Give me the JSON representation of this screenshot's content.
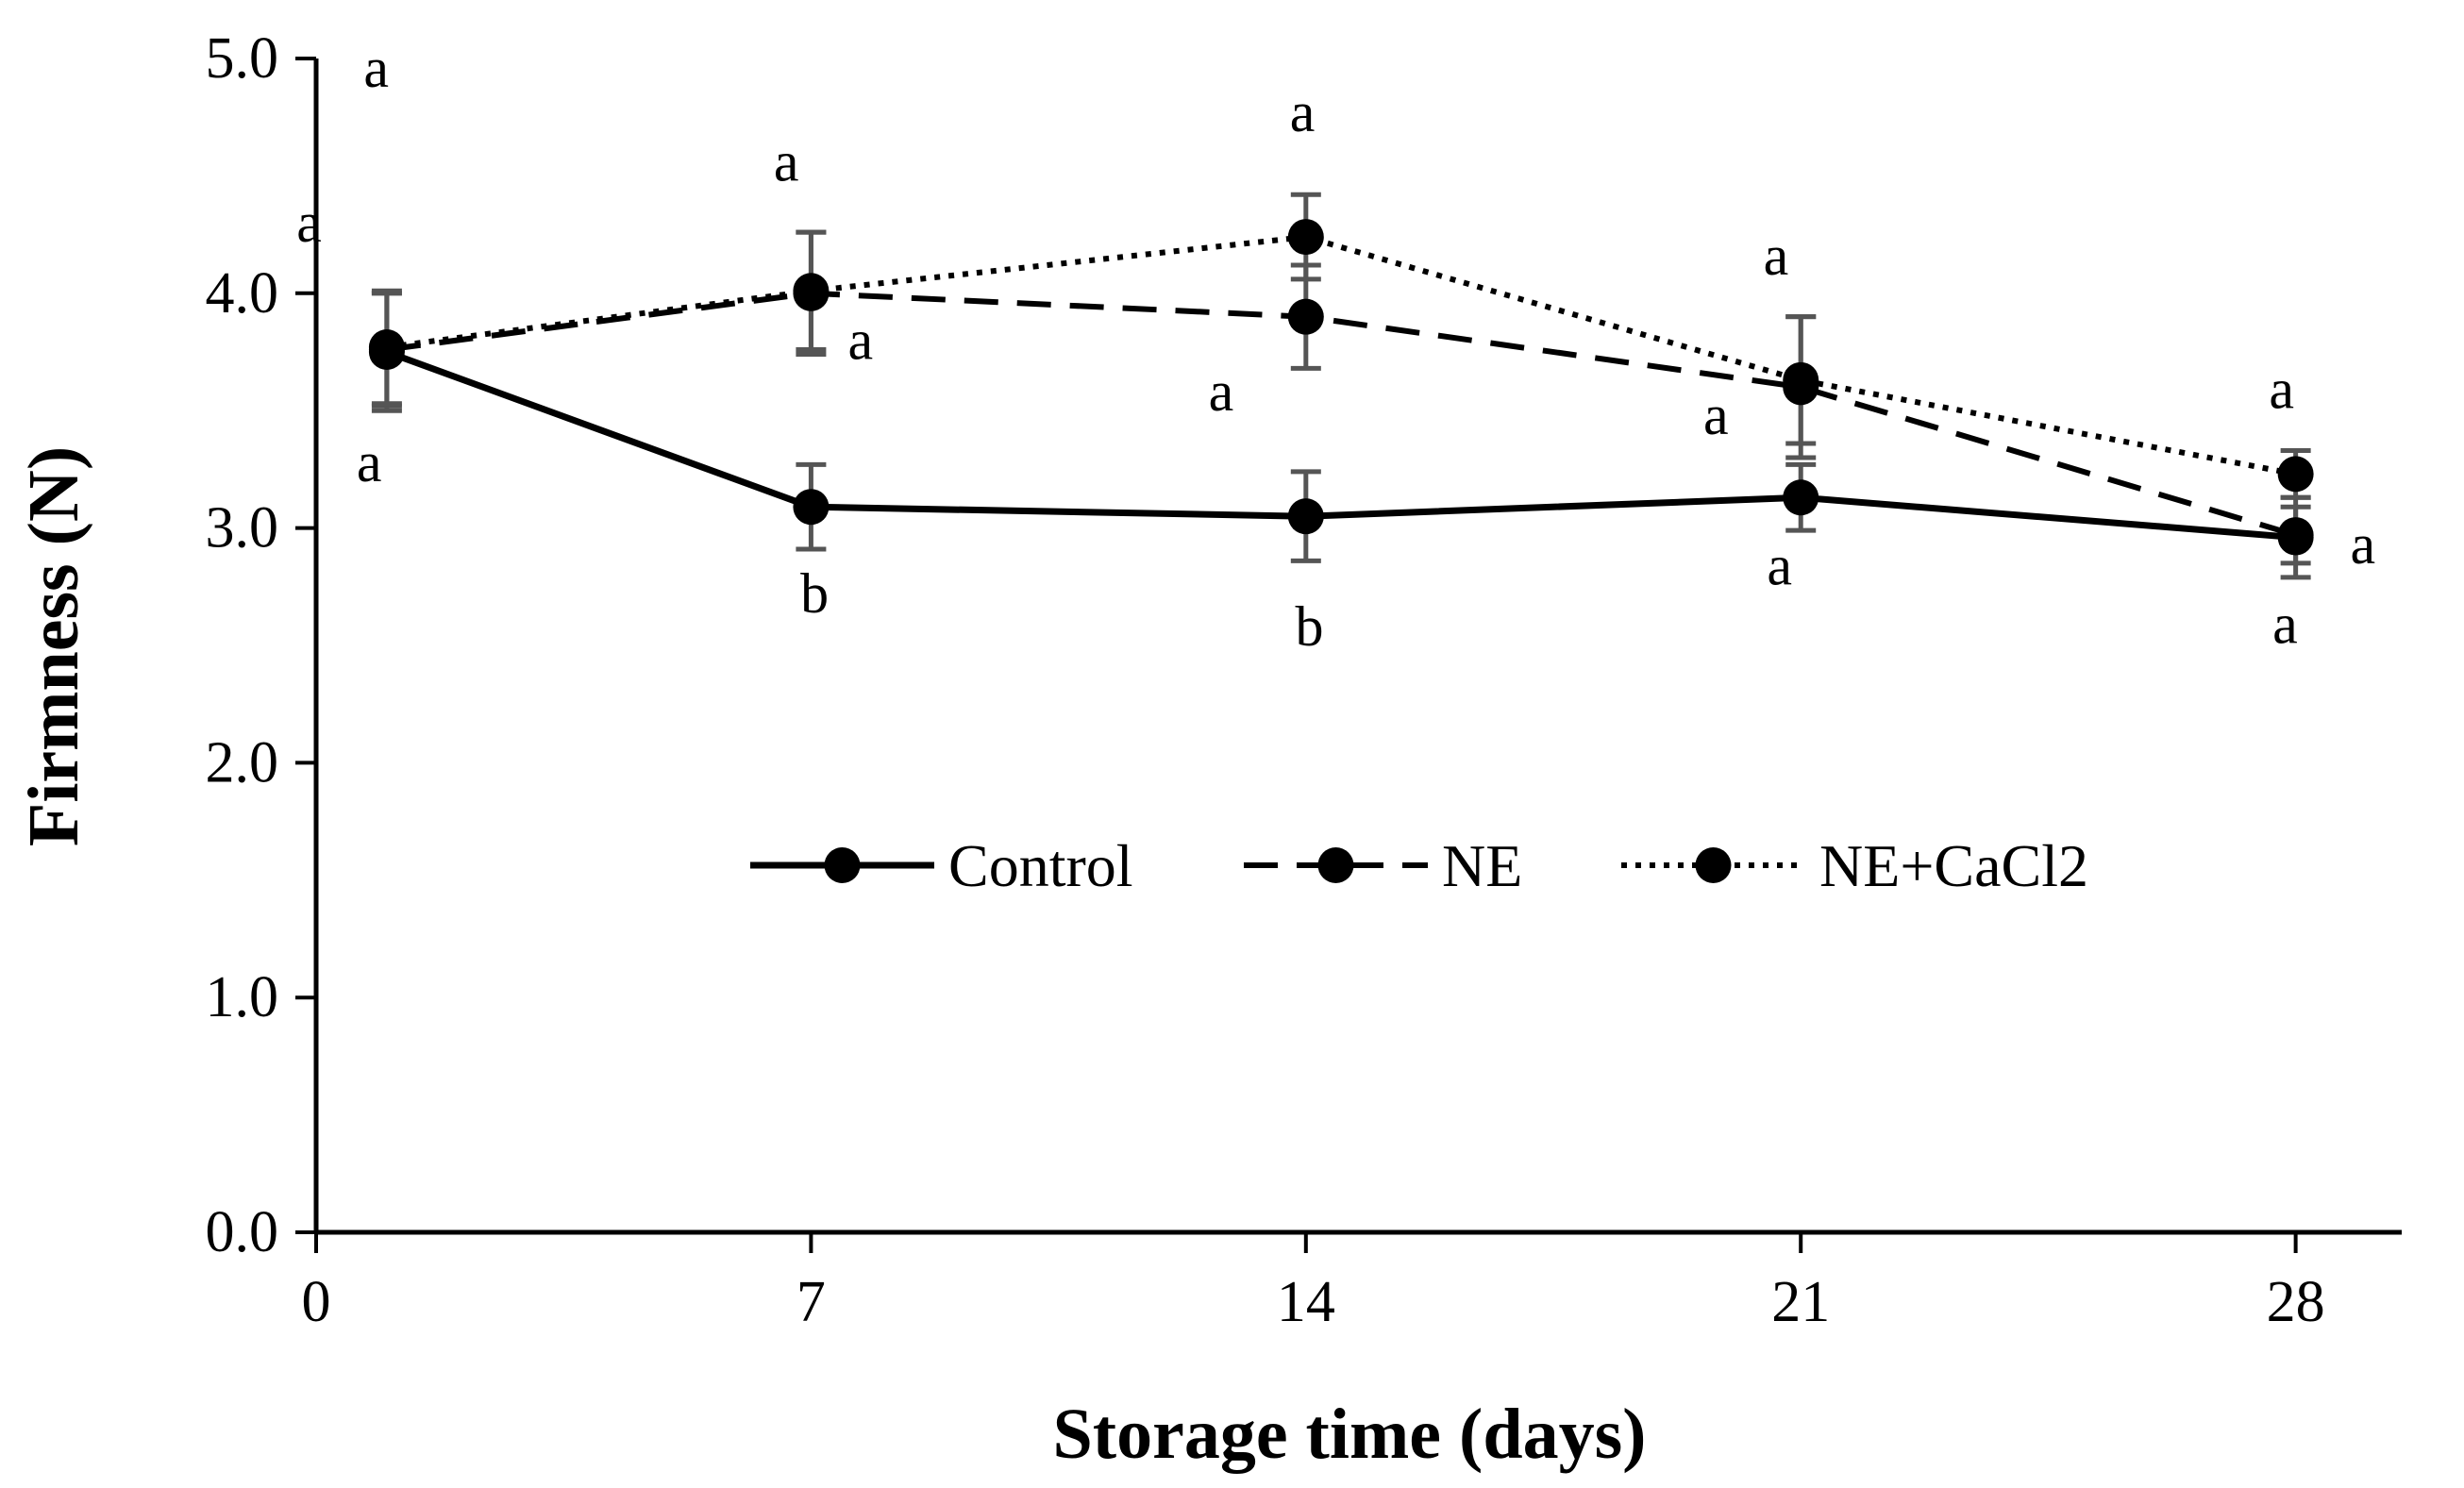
{
  "chart_data": {
    "type": "line",
    "xlabel": "Storage time (days)",
    "ylabel": "Firmness (N)",
    "xlim": [
      0,
      29.5
    ],
    "ylim": [
      0,
      5
    ],
    "x_ticks": [
      0,
      7,
      14,
      21,
      28
    ],
    "y_ticks": [
      0,
      1,
      2,
      3,
      4,
      5
    ],
    "x_tick_labels": [
      "0",
      "7",
      "14",
      "21",
      "28"
    ],
    "y_tick_labels": [
      "0.0",
      "1.0",
      "2.0",
      "3.0",
      "4.0",
      "5.0"
    ],
    "legend_position": "center",
    "series": [
      {
        "name": "Control",
        "line_style": "solid",
        "x": [
          1,
          7,
          14,
          21,
          28
        ],
        "values": [
          3.75,
          3.09,
          3.05,
          3.13,
          2.96
        ],
        "error": [
          0.25,
          0.18,
          0.19,
          0.14,
          0.17
        ],
        "sig_letters": [
          "a",
          "b",
          "b",
          "a",
          "a"
        ]
      },
      {
        "name": "NE",
        "line_style": "dashed",
        "x": [
          1,
          7,
          14,
          21,
          28
        ],
        "values": [
          3.76,
          4.0,
          3.9,
          3.6,
          2.97
        ],
        "error": [
          0.24,
          0.26,
          0.22,
          0.3,
          0.12
        ],
        "sig_letters": [
          "a",
          "a",
          "a",
          "a",
          "a"
        ]
      },
      {
        "name": "NE+CaCl2",
        "line_style": "dotted",
        "x": [
          1,
          7,
          14,
          21,
          28
        ],
        "values": [
          3.77,
          4.01,
          4.24,
          3.63,
          3.23
        ],
        "error": [
          0.24,
          0.25,
          0.18,
          0.27,
          0.1
        ],
        "sig_letters": [
          "a",
          "a",
          "a",
          "a",
          "a"
        ]
      }
    ]
  }
}
